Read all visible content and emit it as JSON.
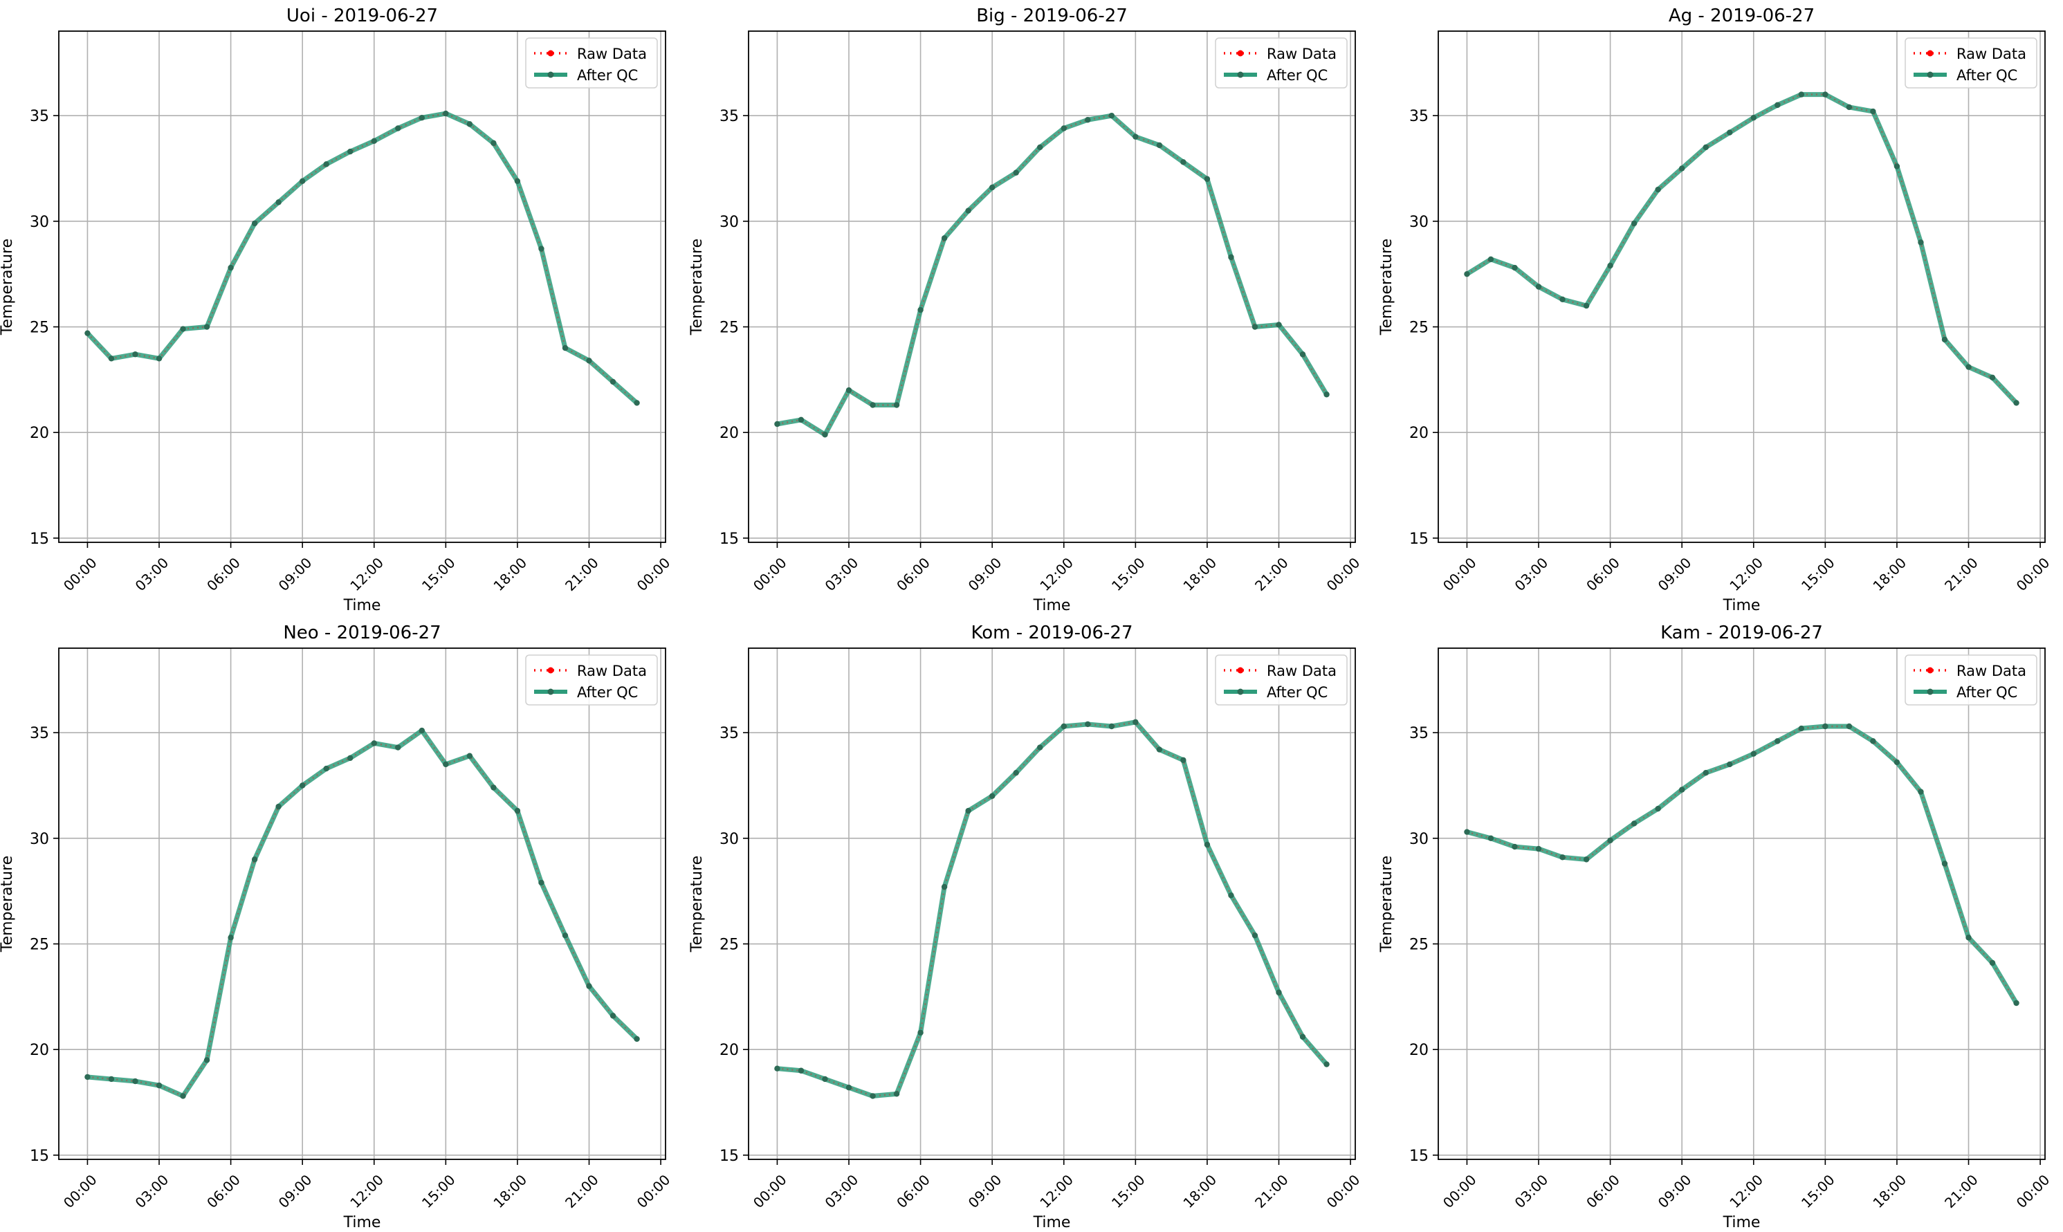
{
  "figure": {
    "y_axis_label": "Temperature",
    "x_axis_label": "Time",
    "x_tick_labels": [
      "00:00",
      "03:00",
      "06:00",
      "09:00",
      "12:00",
      "15:00",
      "18:00",
      "21:00",
      "00:00"
    ],
    "y_tick_labels": [
      "15",
      "20",
      "25",
      "30",
      "35"
    ],
    "legend": [
      "Raw Data",
      "After QC"
    ],
    "colors": {
      "raw": "#ff0000",
      "qc": "#2e9c7b",
      "marker": "#2d6b56",
      "grid": "#b0b0b0"
    }
  },
  "chart_data": [
    {
      "type": "line",
      "title": "Uoi - 2019-06-27",
      "xlabel": "Time",
      "ylabel": "Temperature",
      "xlim": [
        "-01:12",
        "24:12"
      ],
      "ylim": [
        14.8,
        39.0
      ],
      "grid": true,
      "legend_position": "top-right",
      "x": [
        "00:00",
        "01:00",
        "02:00",
        "03:00",
        "04:00",
        "05:00",
        "06:00",
        "07:00",
        "08:00",
        "09:00",
        "10:00",
        "11:00",
        "12:00",
        "13:00",
        "14:00",
        "15:00",
        "16:00",
        "17:00",
        "18:00",
        "19:00",
        "20:00",
        "21:00",
        "22:00",
        "23:00"
      ],
      "series": [
        {
          "name": "Raw Data",
          "values": [
            24.7,
            23.5,
            23.7,
            23.5,
            24.9,
            25.0,
            27.8,
            29.9,
            30.9,
            31.9,
            32.7,
            33.3,
            33.8,
            34.4,
            34.9,
            35.1,
            34.6,
            33.7,
            31.9,
            28.7,
            24.0,
            23.4,
            22.4,
            21.4
          ]
        },
        {
          "name": "After QC",
          "values": [
            24.7,
            23.5,
            23.7,
            23.5,
            24.9,
            25.0,
            27.8,
            29.9,
            30.9,
            31.9,
            32.7,
            33.3,
            33.8,
            34.4,
            34.9,
            35.1,
            34.6,
            33.7,
            31.9,
            28.7,
            24.0,
            23.4,
            22.4,
            21.4
          ]
        }
      ]
    },
    {
      "type": "line",
      "title": "Big - 2019-06-27",
      "xlabel": "Time",
      "ylabel": "Temperature",
      "xlim": [
        "-01:12",
        "24:12"
      ],
      "ylim": [
        14.8,
        39.0
      ],
      "grid": true,
      "legend_position": "top-right",
      "x": [
        "00:00",
        "01:00",
        "02:00",
        "03:00",
        "04:00",
        "05:00",
        "06:00",
        "07:00",
        "08:00",
        "09:00",
        "10:00",
        "11:00",
        "12:00",
        "13:00",
        "14:00",
        "15:00",
        "16:00",
        "17:00",
        "18:00",
        "19:00",
        "20:00",
        "21:00",
        "22:00",
        "23:00"
      ],
      "series": [
        {
          "name": "Raw Data",
          "values": [
            20.4,
            20.6,
            19.9,
            22.0,
            21.3,
            21.3,
            25.8,
            29.2,
            30.5,
            31.6,
            32.3,
            33.5,
            34.4,
            34.8,
            35.0,
            34.0,
            33.6,
            32.8,
            32.0,
            28.3,
            25.0,
            25.1,
            23.7,
            21.8
          ]
        },
        {
          "name": "After QC",
          "values": [
            20.4,
            20.6,
            19.9,
            22.0,
            21.3,
            21.3,
            25.8,
            29.2,
            30.5,
            31.6,
            32.3,
            33.5,
            34.4,
            34.8,
            35.0,
            34.0,
            33.6,
            32.8,
            32.0,
            28.3,
            25.0,
            25.1,
            23.7,
            21.8
          ]
        }
      ]
    },
    {
      "type": "line",
      "title": "Ag - 2019-06-27",
      "xlabel": "Time",
      "ylabel": "Temperature",
      "xlim": [
        "-01:12",
        "24:12"
      ],
      "ylim": [
        14.8,
        39.0
      ],
      "grid": true,
      "legend_position": "top-right",
      "x": [
        "00:00",
        "01:00",
        "02:00",
        "03:00",
        "04:00",
        "05:00",
        "06:00",
        "07:00",
        "08:00",
        "09:00",
        "10:00",
        "11:00",
        "12:00",
        "13:00",
        "14:00",
        "15:00",
        "16:00",
        "17:00",
        "18:00",
        "19:00",
        "20:00",
        "21:00",
        "22:00",
        "23:00"
      ],
      "series": [
        {
          "name": "Raw Data",
          "values": [
            27.5,
            28.2,
            27.8,
            26.9,
            26.3,
            26.0,
            27.9,
            29.9,
            31.5,
            32.5,
            33.5,
            34.2,
            34.9,
            35.5,
            36.0,
            36.0,
            35.4,
            35.2,
            32.6,
            29.0,
            24.4,
            23.1,
            22.6,
            21.4
          ]
        },
        {
          "name": "After QC",
          "values": [
            27.5,
            28.2,
            27.8,
            26.9,
            26.3,
            26.0,
            27.9,
            29.9,
            31.5,
            32.5,
            33.5,
            34.2,
            34.9,
            35.5,
            36.0,
            36.0,
            35.4,
            35.2,
            32.6,
            29.0,
            24.4,
            23.1,
            22.6,
            21.4
          ]
        }
      ]
    },
    {
      "type": "line",
      "title": "Neo - 2019-06-27",
      "xlabel": "Time",
      "ylabel": "Temperature",
      "xlim": [
        "-01:12",
        "24:12"
      ],
      "ylim": [
        14.8,
        39.0
      ],
      "grid": true,
      "legend_position": "top-right",
      "x": [
        "00:00",
        "01:00",
        "02:00",
        "03:00",
        "04:00",
        "05:00",
        "06:00",
        "07:00",
        "08:00",
        "09:00",
        "10:00",
        "11:00",
        "12:00",
        "13:00",
        "14:00",
        "15:00",
        "16:00",
        "17:00",
        "18:00",
        "19:00",
        "20:00",
        "21:00",
        "22:00",
        "23:00"
      ],
      "series": [
        {
          "name": "Raw Data",
          "values": [
            18.7,
            18.6,
            18.5,
            18.3,
            17.8,
            19.5,
            25.3,
            29.0,
            31.5,
            32.5,
            33.3,
            33.8,
            34.5,
            34.3,
            35.1,
            33.5,
            33.9,
            32.4,
            31.3,
            27.9,
            25.4,
            23.0,
            21.6,
            20.5
          ]
        },
        {
          "name": "After QC",
          "values": [
            18.7,
            18.6,
            18.5,
            18.3,
            17.8,
            19.5,
            25.3,
            29.0,
            31.5,
            32.5,
            33.3,
            33.8,
            34.5,
            34.3,
            35.1,
            33.5,
            33.9,
            32.4,
            31.3,
            27.9,
            25.4,
            23.0,
            21.6,
            20.5
          ]
        }
      ]
    },
    {
      "type": "line",
      "title": "Kom - 2019-06-27",
      "xlabel": "Time",
      "ylabel": "Temperature",
      "xlim": [
        "-01:12",
        "24:12"
      ],
      "ylim": [
        14.8,
        39.0
      ],
      "grid": true,
      "legend_position": "top-right",
      "x": [
        "00:00",
        "01:00",
        "02:00",
        "03:00",
        "04:00",
        "05:00",
        "06:00",
        "07:00",
        "08:00",
        "09:00",
        "10:00",
        "11:00",
        "12:00",
        "13:00",
        "14:00",
        "15:00",
        "16:00",
        "17:00",
        "18:00",
        "19:00",
        "20:00",
        "21:00",
        "22:00",
        "23:00"
      ],
      "series": [
        {
          "name": "Raw Data",
          "values": [
            19.1,
            19.0,
            18.6,
            18.2,
            17.8,
            17.9,
            20.8,
            27.7,
            31.3,
            32.0,
            33.1,
            34.3,
            35.3,
            35.4,
            35.3,
            35.5,
            34.2,
            33.7,
            29.7,
            27.3,
            25.4,
            22.7,
            20.6,
            19.3
          ]
        },
        {
          "name": "After QC",
          "values": [
            19.1,
            19.0,
            18.6,
            18.2,
            17.8,
            17.9,
            20.8,
            27.7,
            31.3,
            32.0,
            33.1,
            34.3,
            35.3,
            35.4,
            35.3,
            35.5,
            34.2,
            33.7,
            29.7,
            27.3,
            25.4,
            22.7,
            20.6,
            19.3
          ]
        }
      ]
    },
    {
      "type": "line",
      "title": "Kam - 2019-06-27",
      "xlabel": "Time",
      "ylabel": "Temperature",
      "xlim": [
        "-01:12",
        "24:12"
      ],
      "ylim": [
        14.8,
        39.0
      ],
      "grid": true,
      "legend_position": "top-right",
      "x": [
        "00:00",
        "01:00",
        "02:00",
        "03:00",
        "04:00",
        "05:00",
        "06:00",
        "07:00",
        "08:00",
        "09:00",
        "10:00",
        "11:00",
        "12:00",
        "13:00",
        "14:00",
        "15:00",
        "16:00",
        "17:00",
        "18:00",
        "19:00",
        "20:00",
        "21:00",
        "22:00",
        "23:00"
      ],
      "series": [
        {
          "name": "Raw Data",
          "values": [
            30.3,
            30.0,
            29.6,
            29.5,
            29.1,
            29.0,
            29.9,
            30.7,
            31.4,
            32.3,
            33.1,
            33.5,
            34.0,
            34.6,
            35.2,
            35.3,
            35.3,
            34.6,
            33.6,
            32.2,
            28.8,
            25.3,
            24.1,
            22.2
          ]
        },
        {
          "name": "After QC",
          "values": [
            30.3,
            30.0,
            29.6,
            29.5,
            29.1,
            29.0,
            29.9,
            30.7,
            31.4,
            32.3,
            33.1,
            33.5,
            34.0,
            34.6,
            35.2,
            35.3,
            35.3,
            34.6,
            33.6,
            32.2,
            28.8,
            25.3,
            24.1,
            22.2
          ]
        }
      ]
    }
  ]
}
